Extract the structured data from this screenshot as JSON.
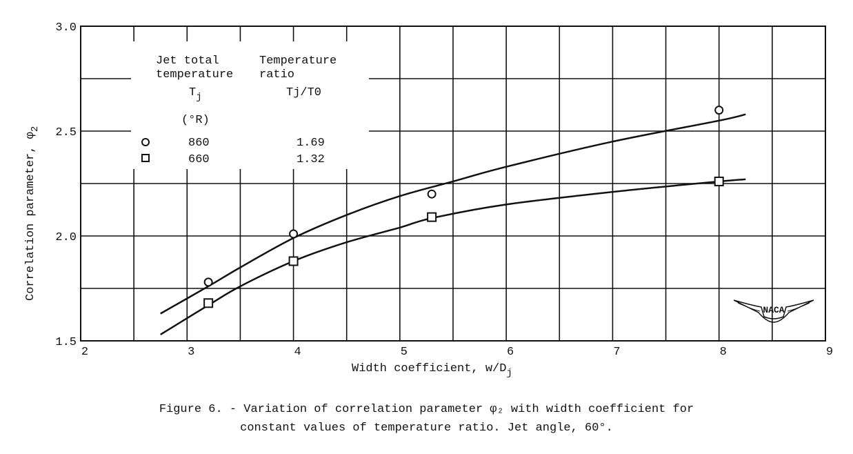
{
  "chart_data": {
    "type": "scatter",
    "xlabel": "Width coefficient, w/D",
    "xlabel_sub": "j",
    "ylabel": "Correlation parameter, φ",
    "ylabel_sub": "2",
    "xlim": [
      2,
      9
    ],
    "ylim": [
      1.5,
      3.0
    ],
    "x_ticks": [
      2,
      3,
      4,
      5,
      6,
      7,
      8,
      9
    ],
    "y_ticks": [
      1.5,
      2.0,
      2.5,
      3.0
    ],
    "y_tick_labels": [
      "1.5",
      "2.0",
      "2.5",
      "3.0"
    ],
    "grid": true,
    "legend_placement": "top-left",
    "legend": {
      "col1_header": [
        "Jet total",
        "temperature"
      ],
      "col2_header": [
        "Temperature",
        "ratio"
      ],
      "col1_symbol": "T",
      "col1_symbol_sub": "j",
      "col1_unit": "(°R)",
      "col2_symbol": "Tj/T0",
      "rows": [
        {
          "marker": "circle",
          "temperature": "860",
          "ratio": "1.69"
        },
        {
          "marker": "square",
          "temperature": "660",
          "ratio": "1.32"
        }
      ]
    },
    "series": [
      {
        "marker": "circle",
        "points": [
          [
            3.2,
            1.78
          ],
          [
            4.0,
            2.01
          ],
          [
            5.3,
            2.2
          ],
          [
            8.0,
            2.6
          ]
        ],
        "curve": [
          [
            2.75,
            1.63
          ],
          [
            3.2,
            1.76
          ],
          [
            3.5,
            1.85
          ],
          [
            4.0,
            1.99
          ],
          [
            4.5,
            2.1
          ],
          [
            5.0,
            2.19
          ],
          [
            5.5,
            2.26
          ],
          [
            6.0,
            2.33
          ],
          [
            7.0,
            2.45
          ],
          [
            8.0,
            2.55
          ],
          [
            8.25,
            2.58
          ]
        ]
      },
      {
        "marker": "square",
        "points": [
          [
            3.2,
            1.68
          ],
          [
            4.0,
            1.88
          ],
          [
            5.3,
            2.09
          ],
          [
            8.0,
            2.26
          ]
        ],
        "curve": [
          [
            2.75,
            1.53
          ],
          [
            3.2,
            1.67
          ],
          [
            3.5,
            1.76
          ],
          [
            4.0,
            1.88
          ],
          [
            4.5,
            1.97
          ],
          [
            5.0,
            2.04
          ],
          [
            5.3,
            2.085
          ],
          [
            6.0,
            2.15
          ],
          [
            7.0,
            2.21
          ],
          [
            8.0,
            2.26
          ],
          [
            8.25,
            2.27
          ]
        ]
      }
    ]
  },
  "caption": {
    "line1": "Figure 6. - Variation of correlation parameter φ₂  with width coefficient for",
    "line2": "constant values of temperature ratio.  Jet angle, 60°."
  },
  "logo": "NACA"
}
